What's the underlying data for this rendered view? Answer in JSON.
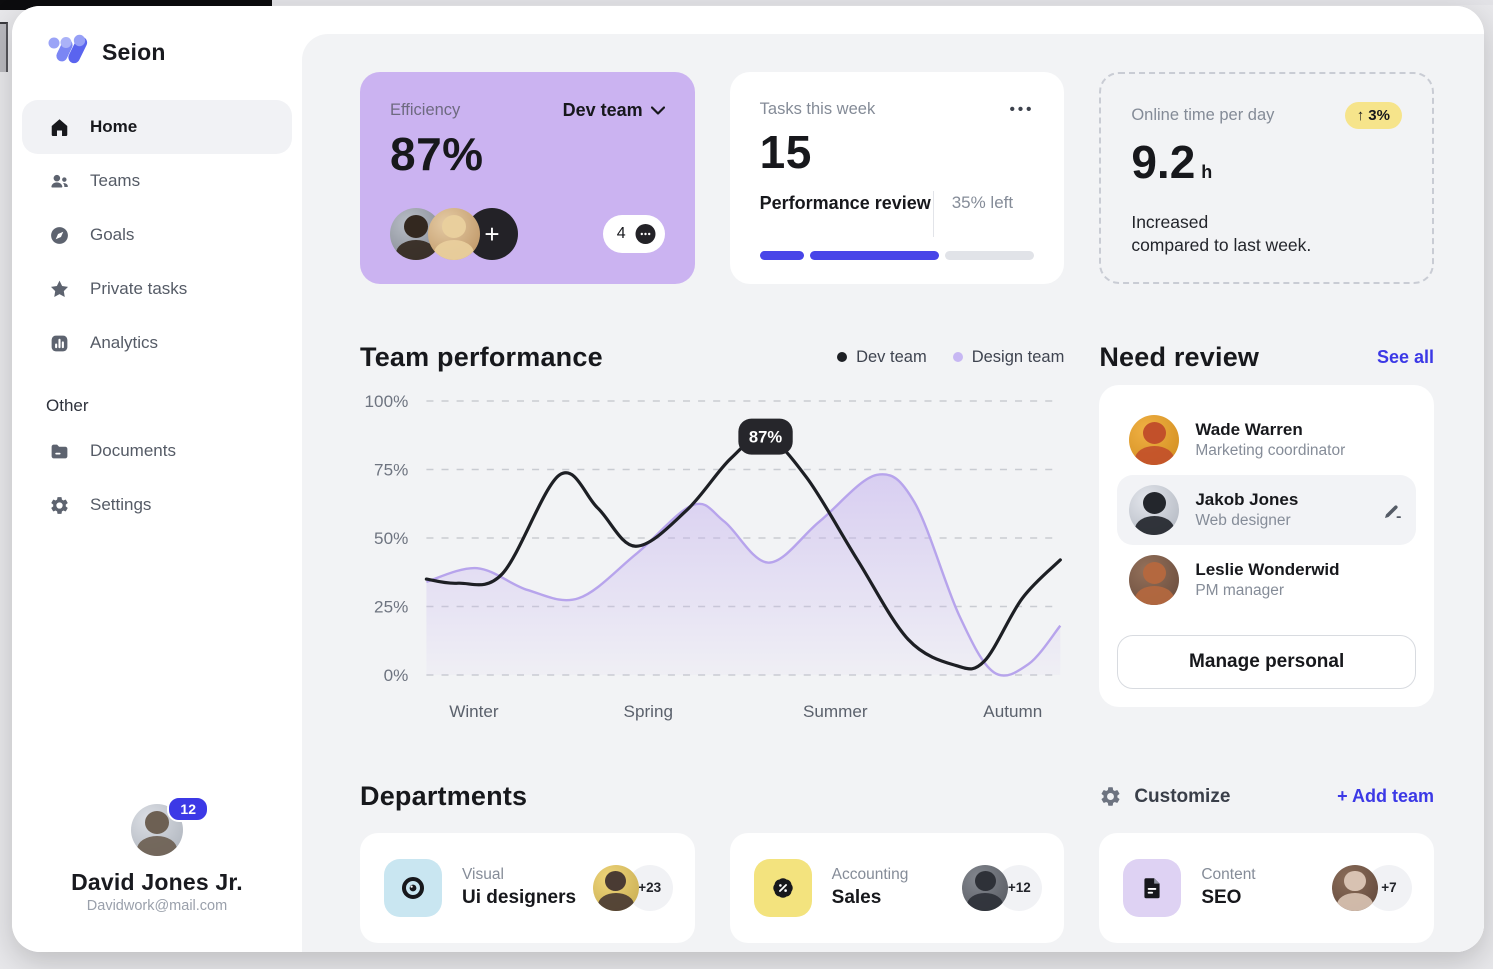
{
  "colors": {
    "accent_blue": "#3c39e6",
    "progress_blue": "#4845e8",
    "efficiency_card_purple": "#cbb3f1",
    "delta_badge_yellow": "#f6e48b",
    "dev_team_line": "#1d1f24",
    "design_team_area": "#b7a4ec",
    "dept_icon_blue": "#c9e6f1",
    "dept_icon_yellow": "#f3e37e",
    "dept_icon_purple": "#ded2f3"
  },
  "app": {
    "name": "Seion"
  },
  "sidebar": {
    "items": [
      {
        "label": "Home",
        "icon": "home-icon",
        "active": true
      },
      {
        "label": "Teams",
        "icon": "people-icon",
        "active": false
      },
      {
        "label": "Goals",
        "icon": "compass-icon",
        "active": false
      },
      {
        "label": "Private tasks",
        "icon": "star-icon",
        "active": false
      },
      {
        "label": "Analytics",
        "icon": "bar-chart-icon",
        "active": false
      }
    ],
    "other_label": "Other",
    "other_items": [
      {
        "label": "Documents",
        "icon": "folder-icon"
      },
      {
        "label": "Settings",
        "icon": "gear-icon"
      }
    ],
    "user": {
      "name": "David Jones Jr.",
      "email": "Davidwork@mail.com",
      "badge": "12"
    }
  },
  "cards": {
    "efficiency": {
      "label": "Efficiency",
      "value": "87%",
      "team_selector": "Dev team",
      "comments_count": "4"
    },
    "tasks": {
      "label": "Tasks this week",
      "value": "15",
      "menu": "•••",
      "task_name": "Performance review",
      "remaining": "35% left",
      "progress_segments_pct": [
        16,
        47
      ]
    },
    "online": {
      "label": "Online time per day",
      "value": "9.2",
      "unit": "h",
      "delta": "3%",
      "delta_arrow": "↑",
      "note_line1": "Increased",
      "note_line2": "compared to last week."
    }
  },
  "chart_data": {
    "type": "area",
    "title": "Team performance",
    "x_categories": [
      "Winter",
      "Spring",
      "Summer",
      "Autumn"
    ],
    "x_category_positions": [
      0.075,
      0.35,
      0.645,
      0.925
    ],
    "y_ticks": [
      "0%",
      "25%",
      "50%",
      "75%",
      "100%"
    ],
    "y_tick_values": [
      0,
      25,
      50,
      75,
      100
    ],
    "ylim": [
      0,
      100
    ],
    "grid": "dashed",
    "legend_position": "top-right",
    "legend": [
      {
        "name": "Dev team",
        "color": "#1d1f24"
      },
      {
        "name": "Design team",
        "color": "#c7b7f3"
      }
    ],
    "annotation": {
      "text": "87%",
      "x": 0.535,
      "y": 87
    },
    "series": [
      {
        "name": "Design team",
        "type": "area",
        "color": "#b7a4ec",
        "points": [
          [
            0,
            34
          ],
          [
            0.08,
            39
          ],
          [
            0.16,
            31
          ],
          [
            0.24,
            28
          ],
          [
            0.33,
            44
          ],
          [
            0.42,
            62
          ],
          [
            0.47,
            56
          ],
          [
            0.54,
            41
          ],
          [
            0.62,
            56
          ],
          [
            0.71,
            73
          ],
          [
            0.77,
            63
          ],
          [
            0.84,
            22
          ],
          [
            0.895,
            1
          ],
          [
            0.95,
            4
          ],
          [
            1,
            18
          ]
        ]
      },
      {
        "name": "Dev team",
        "type": "line",
        "color": "#1d1f24",
        "points": [
          [
            0,
            35
          ],
          [
            0.05,
            33.5
          ],
          [
            0.12,
            37
          ],
          [
            0.21,
            73
          ],
          [
            0.27,
            61
          ],
          [
            0.33,
            47
          ],
          [
            0.41,
            60
          ],
          [
            0.48,
            79
          ],
          [
            0.535,
            87
          ],
          [
            0.6,
            72
          ],
          [
            0.68,
            42
          ],
          [
            0.76,
            13
          ],
          [
            0.835,
            3.5
          ],
          [
            0.88,
            5
          ],
          [
            0.94,
            28
          ],
          [
            1,
            42
          ]
        ]
      }
    ]
  },
  "need_review": {
    "title": "Need review",
    "see_all": "See all",
    "people": [
      {
        "name": "Wade Warren",
        "role": "Marketing coordinator"
      },
      {
        "name": "Jakob Jones",
        "role": "Web designer"
      },
      {
        "name": "Leslie Wonderwid",
        "role": "PM manager"
      }
    ],
    "button": "Manage personal"
  },
  "departments": {
    "title": "Departments",
    "customize": "Customize",
    "add_team": "+ Add team",
    "cards": [
      {
        "category": "Visual",
        "name": "Ui designers",
        "count": "+23",
        "icon": "eye-icon"
      },
      {
        "category": "Accounting",
        "name": "Sales",
        "count": "+12",
        "icon": "discount-icon"
      },
      {
        "category": "Content",
        "name": "SEO",
        "count": "+7",
        "icon": "document-icon"
      }
    ]
  }
}
